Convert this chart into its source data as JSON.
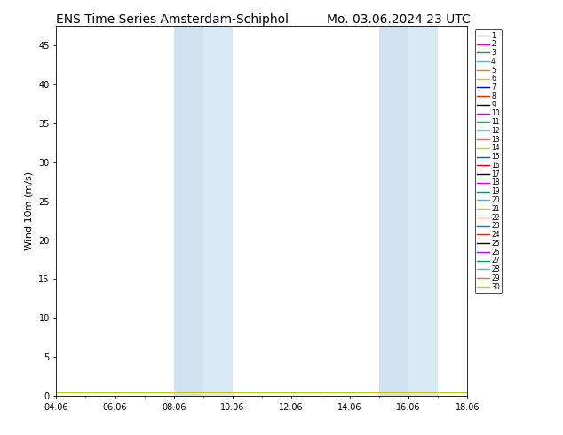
{
  "title_left": "ENS Time Series Amsterdam-Schiphol",
  "title_right": "Mo. 03.06.2024 23 UTC",
  "ylabel": "Wind 10m (m/s)",
  "ylim": [
    0,
    47.5
  ],
  "yticks": [
    0,
    5,
    10,
    15,
    20,
    25,
    30,
    35,
    40,
    45
  ],
  "xtick_labels": [
    "04.06",
    "06.06",
    "08.06",
    "10.06",
    "12.06",
    "14.06",
    "16.06",
    "18.06"
  ],
  "xtick_positions": [
    4,
    6,
    8,
    10,
    12,
    14,
    16,
    18
  ],
  "x_start": 4.0,
  "x_end": 18.0,
  "shaded_bands": [
    [
      8.0,
      9.0
    ],
    [
      9.0,
      10.0
    ],
    [
      15.0,
      16.0
    ],
    [
      16.0,
      17.0
    ]
  ],
  "band_colors": [
    "#cfe3f0",
    "#daeaf5",
    "#cfe3f0",
    "#daeaf5"
  ],
  "n_members": 30,
  "member_colors": [
    "#999999",
    "#cc00cc",
    "#009966",
    "#55aaff",
    "#cc8800",
    "#cccc00",
    "#0000cc",
    "#cc3300",
    "#000000",
    "#cc00cc",
    "#00aa55",
    "#55ccff",
    "#cc8800",
    "#cccc00",
    "#0055cc",
    "#cc0000",
    "#000000",
    "#cc00cc",
    "#009966",
    "#55aaff",
    "#cccc00",
    "#cc8800",
    "#0077cc",
    "#cc3300",
    "#000000",
    "#aa00ff",
    "#009966",
    "#55aaff",
    "#cc8800",
    "#cccc00"
  ],
  "wind_value": 0.5,
  "title_fontsize": 10,
  "tick_fontsize": 7,
  "ylabel_fontsize": 8,
  "legend_fontsize": 5.5
}
